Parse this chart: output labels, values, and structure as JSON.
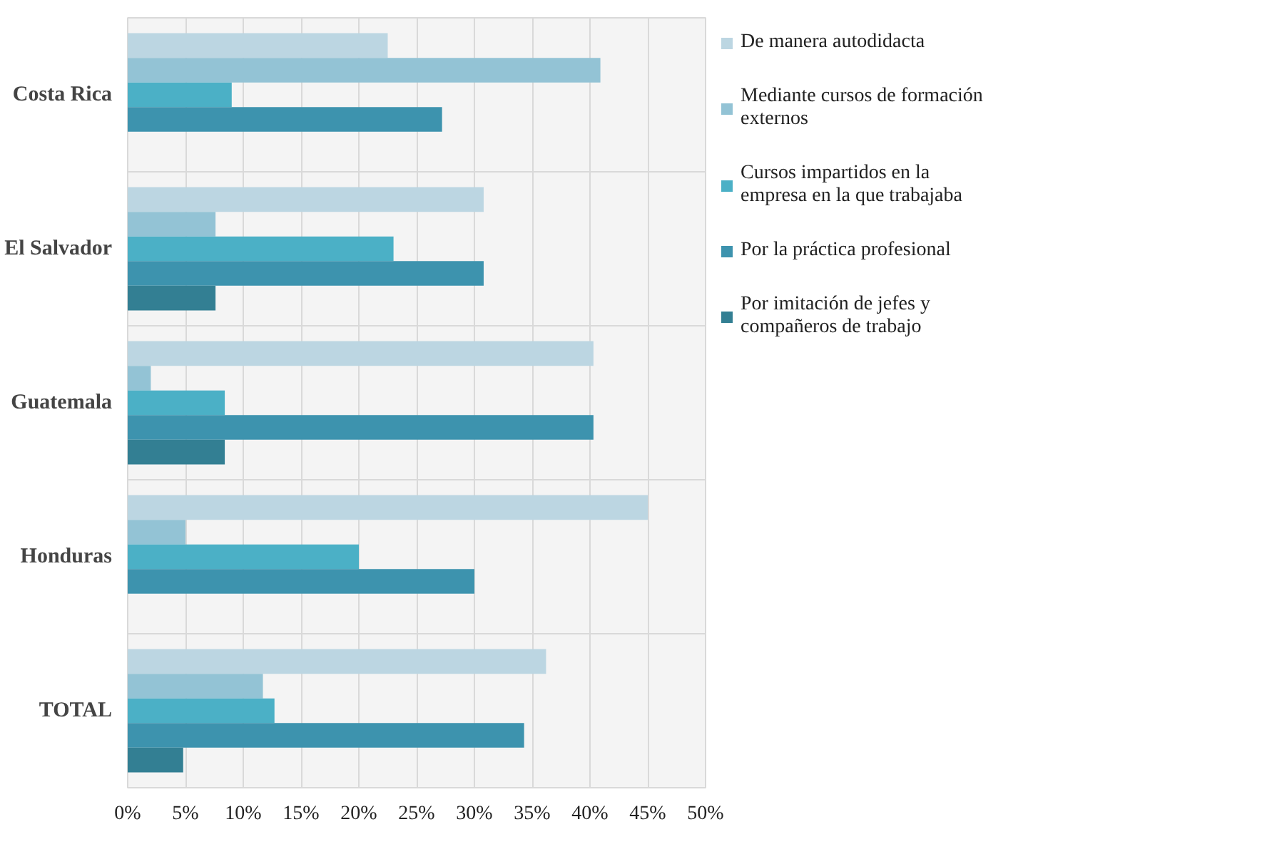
{
  "chart_data": {
    "type": "bar",
    "orientation": "horizontal",
    "categories": [
      "Costa Rica",
      "El Salvador",
      "Guatemala",
      "Honduras",
      "TOTAL"
    ],
    "series": [
      {
        "name": "De manera autodidacta",
        "color": "#bcd6e2",
        "values": [
          22.5,
          30.8,
          40.3,
          45,
          36.2
        ]
      },
      {
        "name": "Mediante cursos de formación externos",
        "color": "#93c3d5",
        "values": [
          40.9,
          7.6,
          2,
          5,
          11.7
        ]
      },
      {
        "name": "Cursos impartidos en la empresa en la que trabajaba",
        "color": "#4bb0c6",
        "values": [
          9,
          23,
          8.4,
          20,
          12.7
        ]
      },
      {
        "name": "Por la práctica profesional",
        "color": "#3d93ae",
        "values": [
          27.2,
          30.8,
          40.3,
          30,
          34.3
        ]
      },
      {
        "name": "Por imitación de jefes y compañeros de trabajo",
        "color": "#337f93",
        "values": [
          0,
          7.6,
          8.4,
          0,
          4.8
        ]
      }
    ],
    "xlim": [
      0,
      50
    ],
    "xticks": [
      {
        "value": 0,
        "label": "0%"
      },
      {
        "value": 5,
        "label": "5%"
      },
      {
        "value": 10,
        "label": "10%"
      },
      {
        "value": 15,
        "label": "15%"
      },
      {
        "value": 20,
        "label": "20%"
      },
      {
        "value": 25,
        "label": "25%"
      },
      {
        "value": 30,
        "label": "30%"
      },
      {
        "value": 35,
        "label": "35%"
      },
      {
        "value": 40,
        "label": "40%"
      },
      {
        "value": 45,
        "label": "45%"
      },
      {
        "value": 50,
        "label": "50%"
      }
    ],
    "grid": true,
    "legend": "right"
  }
}
